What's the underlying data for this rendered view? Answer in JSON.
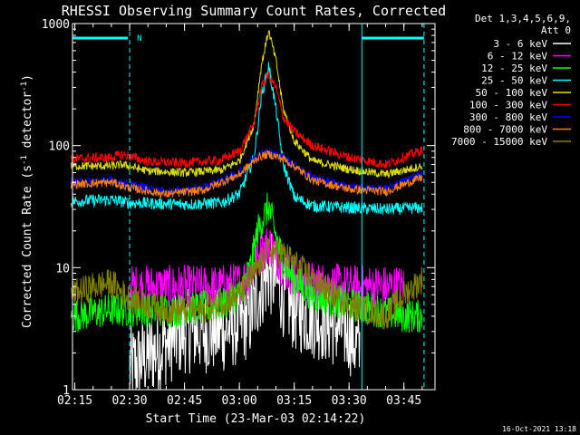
{
  "chart_data": {
    "type": "line",
    "title": "RHESSI Observing Summary Count Rates, Corrected",
    "xlabel": "Start Time (23-Mar-03 02:14:22)",
    "ylabel": "Corrected Count Rate (s⁻¹ detector⁻¹)",
    "y_scale": "log",
    "ylim": [
      1,
      1000
    ],
    "xlim": [
      "02:14:22",
      "03:53:30"
    ],
    "x_ticks": [
      "02:15",
      "02:30",
      "02:45",
      "03:00",
      "03:15",
      "03:30",
      "03:45"
    ],
    "y_ticks": [
      "1",
      "10",
      "100",
      "1000"
    ],
    "legend_header": [
      "Det 1,3,4,5,6,9,",
      "Att 0"
    ],
    "legend_position": "right",
    "timestamp": "16-Oct-2021 13:18",
    "annotations": [
      {
        "text": "N",
        "x": "02:31",
        "color": "#00ffff"
      }
    ],
    "markers": {
      "dashed_cyan_x": [
        "02:30:00",
        "03:50:30"
      ],
      "solid_cyan_x": [
        "03:33:30"
      ],
      "status_bars": [
        {
          "x0": "02:14:22",
          "x1": "02:29:30",
          "y": 760
        },
        {
          "x0": "03:33:30",
          "x1": "03:50:30",
          "y": 760
        }
      ]
    },
    "series": [
      {
        "name": "3 - 6 keV",
        "color": "#ffffff",
        "x": [
          "02:30",
          "02:45",
          "02:55",
          "03:00",
          "03:03",
          "03:06",
          "03:08",
          "03:10",
          "03:12",
          "03:15",
          "03:20",
          "03:25",
          "03:30",
          "03:33"
        ],
        "y": [
          1.5,
          3,
          3,
          3.5,
          4,
          7,
          9,
          8,
          6,
          4.5,
          4,
          3.5,
          3,
          2
        ]
      },
      {
        "name": "6 - 12 keV",
        "color": "#ff00ff",
        "x": [
          "02:30",
          "02:45",
          "02:55",
          "03:00",
          "03:03",
          "03:05",
          "03:08",
          "03:10",
          "03:12",
          "03:15",
          "03:20",
          "03:30",
          "03:45"
        ],
        "y": [
          7,
          7,
          7,
          7.5,
          9,
          12,
          16,
          13,
          10,
          8.5,
          7.5,
          7,
          7
        ]
      },
      {
        "name": "12 - 25 keV",
        "color": "#00ff00",
        "x": [
          "02:14",
          "02:25",
          "02:45",
          "02:55",
          "03:00",
          "03:03",
          "03:05",
          "03:08",
          "03:10",
          "03:12",
          "03:15",
          "03:20",
          "03:30",
          "03:45",
          "03:50"
        ],
        "y": [
          4,
          4.5,
          4.5,
          5,
          6,
          10,
          20,
          32,
          18,
          11,
          8,
          6,
          5,
          4,
          4
        ]
      },
      {
        "name": "25 - 50 keV",
        "color": "#00ffff",
        "x": [
          "02:14",
          "02:25",
          "02:30",
          "02:45",
          "02:55",
          "03:00",
          "03:04",
          "03:06",
          "03:08",
          "03:10",
          "03:12",
          "03:15",
          "03:20",
          "03:30",
          "03:40",
          "03:50"
        ],
        "y": [
          35,
          36,
          34,
          33,
          34,
          40,
          80,
          250,
          450,
          200,
          70,
          38,
          32,
          31,
          30,
          31
        ]
      },
      {
        "name": "50 - 100 keV",
        "color": "#dddd00",
        "x": [
          "02:14",
          "02:25",
          "02:28",
          "02:35",
          "02:45",
          "02:55",
          "03:00",
          "03:04",
          "03:06",
          "03:08",
          "03:10",
          "03:12",
          "03:15",
          "03:20",
          "03:30",
          "03:40",
          "03:50"
        ],
        "y": [
          68,
          68,
          70,
          62,
          60,
          63,
          75,
          150,
          450,
          880,
          500,
          200,
          110,
          75,
          64,
          58,
          68
        ]
      },
      {
        "name": "100 - 300 keV",
        "color": "#ff0000",
        "x": [
          "02:14",
          "02:25",
          "02:28",
          "02:35",
          "02:45",
          "02:55",
          "03:00",
          "03:04",
          "03:06",
          "03:08",
          "03:10",
          "03:12",
          "03:15",
          "03:20",
          "03:30",
          "03:40",
          "03:50"
        ],
        "y": [
          78,
          80,
          85,
          74,
          72,
          76,
          90,
          150,
          300,
          380,
          300,
          170,
          130,
          100,
          80,
          70,
          92
        ]
      },
      {
        "name": "300 - 800 keV",
        "color": "#0000ff",
        "x": [
          "02:14",
          "02:25",
          "02:30",
          "02:40",
          "02:50",
          "03:00",
          "03:05",
          "03:08",
          "03:12",
          "03:15",
          "03:20",
          "03:30",
          "03:40",
          "03:50"
        ],
        "y": [
          50,
          52,
          48,
          42,
          45,
          60,
          85,
          90,
          80,
          70,
          55,
          46,
          44,
          60
        ]
      },
      {
        "name": "800 - 7000 keV",
        "color": "#ff8000",
        "x": [
          "02:14",
          "02:25",
          "02:30",
          "02:40",
          "02:50",
          "03:00",
          "03:05",
          "03:08",
          "03:12",
          "03:15",
          "03:20",
          "03:30",
          "03:40",
          "03:50"
        ],
        "y": [
          48,
          50,
          45,
          40,
          43,
          58,
          80,
          85,
          78,
          68,
          52,
          44,
          42,
          55
        ]
      },
      {
        "name": "7000 - 15000 keV",
        "color": "#808000",
        "x": [
          "02:14",
          "02:20",
          "02:25",
          "02:30",
          "02:40",
          "02:50",
          "03:00",
          "03:05",
          "03:08",
          "03:12",
          "03:15",
          "03:20",
          "03:30",
          "03:40",
          "03:45",
          "03:50"
        ],
        "y": [
          6,
          7,
          7.5,
          5.5,
          4.5,
          4.5,
          6,
          10,
          14,
          13,
          11,
          8,
          5,
          4,
          6,
          8
        ]
      }
    ]
  }
}
